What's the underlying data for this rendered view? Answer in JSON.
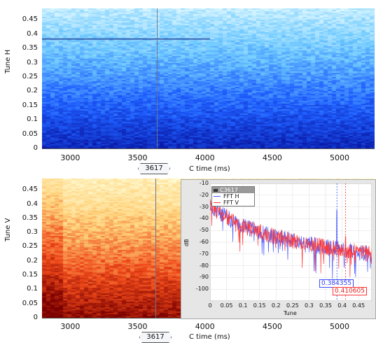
{
  "top_panel": {
    "y_axis_label": "Tune H",
    "x_axis_label": "C time (ms)",
    "y_ticks": [
      "0.45",
      "0.4",
      "0.35",
      "0.3",
      "0.25",
      "0.2",
      "0.15",
      "0.1",
      "0.05",
      "0"
    ],
    "x_ticks": [
      "3000",
      "3500",
      "4000",
      "4500",
      "5000"
    ],
    "cursor_label": "3617",
    "colormap": [
      "#d8f6ff",
      "#6ec9ff",
      "#1f5fff",
      "#0a1aa8"
    ]
  },
  "bottom_panel": {
    "y_axis_label": "Tune V",
    "x_axis_label": "C time (ms)",
    "y_ticks": [
      "0.45",
      "0.4",
      "0.35",
      "0.3",
      "0.25",
      "0.2",
      "0.15",
      "0.1",
      "0.05",
      "0"
    ],
    "x_ticks": [
      "3000",
      "3500",
      "4000",
      "4500",
      "5000"
    ],
    "cursor_label": "3617",
    "colormap": [
      "#fffad0",
      "#ffd27a",
      "#f04a1a",
      "#7a0000"
    ]
  },
  "inset": {
    "title": "C3617",
    "legend": [
      {
        "label": "FFT H",
        "color": "#4a5cff"
      },
      {
        "label": "FFT V",
        "color": "#ff3030"
      }
    ],
    "y_axis_label": "dB",
    "x_axis_label": "Tune",
    "y_ticks": [
      "-10",
      "-20",
      "-30",
      "-40",
      "-50",
      "-60",
      "-70",
      "-80",
      "-90",
      "-100"
    ],
    "x_ticks": [
      "0",
      "0.05",
      "0.1",
      "0.15",
      "0.2",
      "0.25",
      "0.3",
      "0.35",
      "0.4",
      "0.45"
    ],
    "marker_h": "0.384355",
    "marker_v": "0.410605"
  },
  "chart_data": [
    {
      "type": "heatmap",
      "xlabel": "C time (ms)",
      "ylabel": "Tune H",
      "xlim": [
        2790,
        5260
      ],
      "ylim": [
        0,
        0.49
      ],
      "cursor_x": 3617,
      "tune_line_y": 0.384
    },
    {
      "type": "heatmap",
      "xlabel": "C time (ms)",
      "ylabel": "Tune V",
      "xlim": [
        2790,
        5260
      ],
      "ylim": [
        0,
        0.49
      ],
      "cursor_x": 3617
    },
    {
      "type": "line",
      "title": "C3617",
      "xlabel": "Tune",
      "ylabel": "dB",
      "xlim": [
        0,
        0.49
      ],
      "ylim": [
        -110,
        -10
      ],
      "series": [
        {
          "name": "FFT H",
          "peak_x": 0.384355
        },
        {
          "name": "FFT V",
          "peak_x": 0.410605
        }
      ]
    }
  ]
}
